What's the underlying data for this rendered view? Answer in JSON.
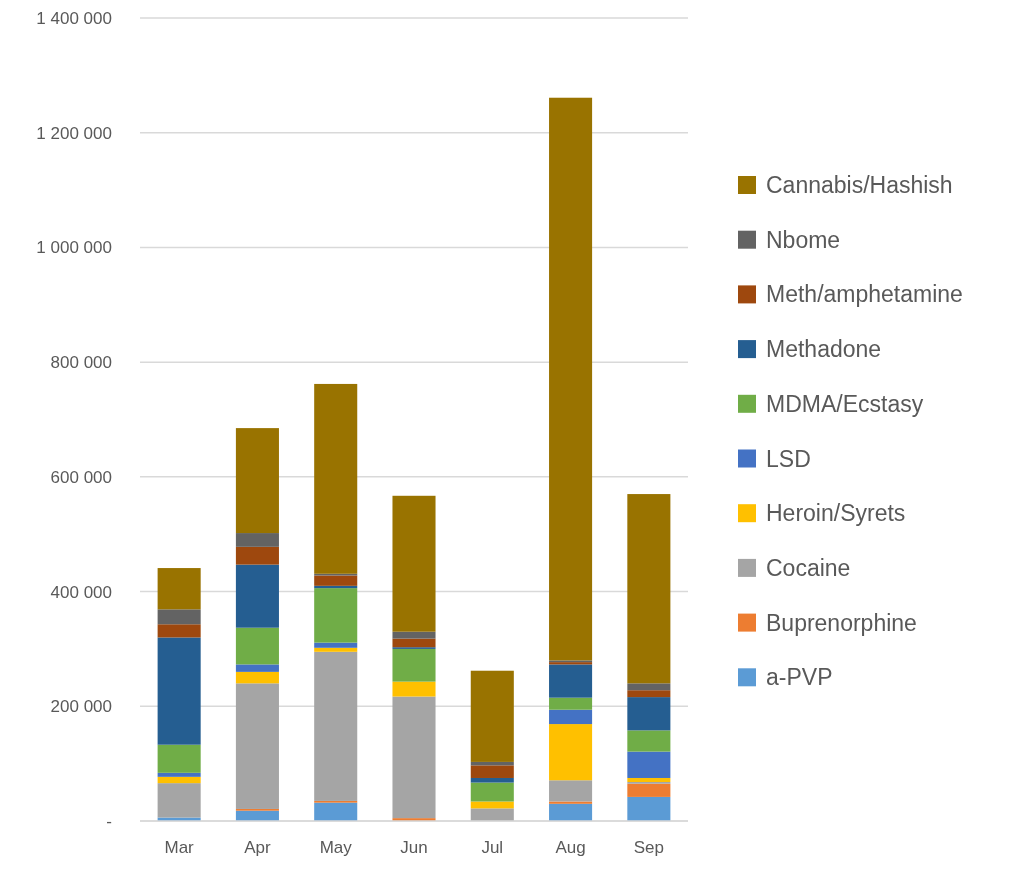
{
  "chart_data": {
    "type": "bar",
    "stacked": true,
    "categories": [
      "Mar",
      "Apr",
      "May",
      "Jun",
      "Jul",
      "Aug",
      "Sep"
    ],
    "series": [
      {
        "name": "a-PVP",
        "color": "#5b9bd5",
        "values": [
          6000,
          18000,
          32000,
          0,
          0,
          30000,
          42000
        ]
      },
      {
        "name": "Buprenorphine",
        "color": "#ed7d31",
        "values": [
          0,
          3000,
          3000,
          5000,
          0,
          4000,
          23000
        ]
      },
      {
        "name": "Cocaine",
        "color": "#a5a5a5",
        "values": [
          60000,
          219000,
          260000,
          212000,
          22000,
          37000,
          3000
        ]
      },
      {
        "name": "Heroin/Syrets",
        "color": "#ffc000",
        "values": [
          11000,
          20000,
          7000,
          26000,
          12000,
          98000,
          7000
        ]
      },
      {
        "name": "LSD",
        "color": "#4472c4",
        "values": [
          7000,
          13000,
          9000,
          0,
          0,
          25000,
          46000
        ]
      },
      {
        "name": "MDMA/Ecstasy",
        "color": "#70ad47",
        "values": [
          49000,
          64000,
          95000,
          57000,
          33000,
          21000,
          37000
        ]
      },
      {
        "name": "Methadone",
        "color": "#255e91",
        "values": [
          187000,
          110000,
          4000,
          3000,
          8000,
          58000,
          58000
        ]
      },
      {
        "name": "Meth/amphetamine",
        "color": "#9e480e",
        "values": [
          23000,
          31000,
          18000,
          15000,
          22000,
          4000,
          12000
        ]
      },
      {
        "name": "Nbome",
        "color": "#636363",
        "values": [
          26000,
          24000,
          3000,
          12000,
          6000,
          3000,
          12000
        ]
      },
      {
        "name": "Cannabis/Hashish",
        "color": "#997300",
        "values": [
          72000,
          183000,
          331000,
          237000,
          159000,
          981000,
          330000
        ]
      }
    ],
    "ylim": [
      0,
      1400000
    ],
    "yticks": [
      {
        "value": 0,
        "label": "-"
      },
      {
        "value": 200000,
        "label": "200 000"
      },
      {
        "value": 400000,
        "label": "400 000"
      },
      {
        "value": 600000,
        "label": "600 000"
      },
      {
        "value": 800000,
        "label": "800 000"
      },
      {
        "value": 1000000,
        "label": "1 000 000"
      },
      {
        "value": 1200000,
        "label": "1 200 000"
      },
      {
        "value": 1400000,
        "label": "1 400 000"
      }
    ],
    "grid": "y",
    "legend": "right"
  }
}
